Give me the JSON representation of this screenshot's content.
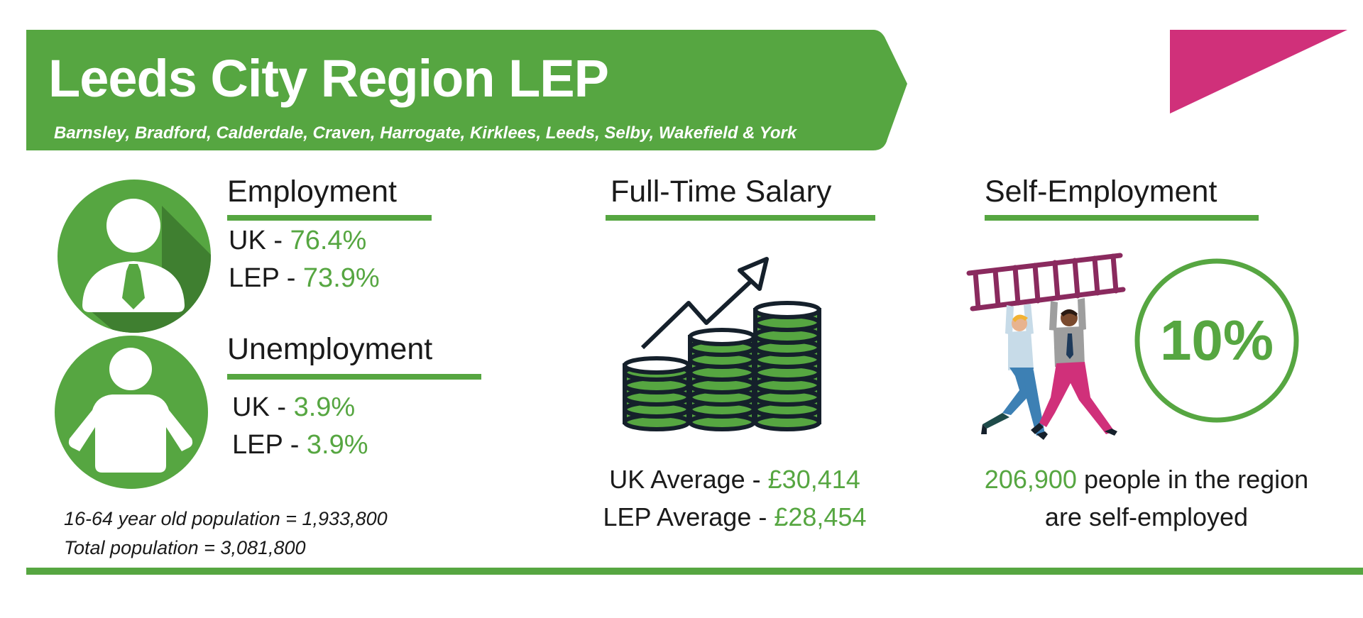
{
  "banner": {
    "title": "Leeds City Region LEP",
    "subtitle": "Barnsley, Bradford, Calderdale, Craven, Harrogate, Kirklees, Leeds, Selby, Wakefield & York"
  },
  "employment": {
    "heading": "Employment",
    "uk_label": "UK - ",
    "uk_value": "76.4%",
    "lep_label": "LEP - ",
    "lep_value": "73.9%"
  },
  "unemployment": {
    "heading": "Unemployment",
    "uk_label": "UK - ",
    "uk_value": "3.9%",
    "lep_label": "LEP - ",
    "lep_value": "3.9%"
  },
  "population": {
    "working_age": "16-64 year old population = 1,933,800",
    "total": "Total population = 3,081,800"
  },
  "salary": {
    "heading": "Full-Time Salary",
    "uk_label": "UK Average - ",
    "uk_value": "£30,414",
    "lep_label": "LEP Average - ",
    "lep_value": "£28,454"
  },
  "self_employment": {
    "heading": "Self-Employment",
    "percent": "10%",
    "count": "206,900",
    "line1_rest": " people in the region",
    "line2": "are self-employed"
  },
  "colors": {
    "brand_green": "#56a641",
    "dark_green": "#3f7f30",
    "accent_pink": "#d0307a",
    "ladder_purple": "#8a2a5e"
  },
  "icons": {
    "employed": "person-with-tie-icon",
    "unemployed": "person-icon",
    "salary": "coin-stacks-growth-icon",
    "self_employed": "people-carrying-ladder-illustration"
  }
}
